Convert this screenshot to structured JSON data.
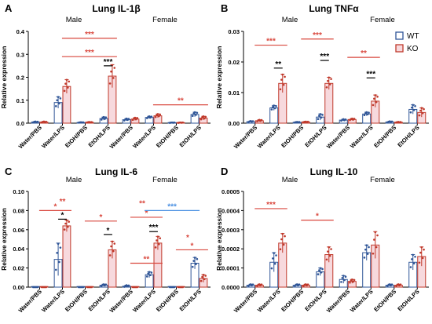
{
  "colors": {
    "wt": "#2f5597",
    "ko": "#c0392b",
    "ko_fill": "#f7d9dd",
    "ko_sig": "#d9473d",
    "blue_sig": "#4a90e2",
    "black": "#000000"
  },
  "legend": {
    "wt_label": "WT",
    "ko_label": "KO"
  },
  "chart_data": [
    {
      "type": "bar",
      "panel_letter": "A",
      "title": "Lung IL-1β",
      "ylabel": "Relative expression",
      "ylim": [
        0,
        0.4
      ],
      "yticks": [
        "0.0",
        "0.1",
        "0.2",
        "0.3",
        "0.4"
      ],
      "group_labels": [
        "Male",
        "Female"
      ],
      "categories": [
        "Water/PBS",
        "Water/LPS",
        "EtOH/PBS",
        "EtOH/LPS",
        "Water/PBS",
        "Water/LPS",
        "EtOH/PBS",
        "EtOH/LPS"
      ],
      "series": [
        {
          "name": "WT",
          "values": [
            0.005,
            0.09,
            0.003,
            0.02,
            0.015,
            0.025,
            0.002,
            0.038
          ],
          "errors": [
            0.002,
            0.025,
            0.001,
            0.007,
            0.005,
            0.005,
            0.001,
            0.01
          ]
        },
        {
          "name": "KO",
          "values": [
            0.005,
            0.16,
            0.004,
            0.205,
            0.018,
            0.032,
            0.002,
            0.022
          ],
          "errors": [
            0.002,
            0.03,
            0.001,
            0.05,
            0.006,
            0.008,
            0.001,
            0.008
          ]
        }
      ],
      "sig": [
        {
          "from": 1,
          "to": 3,
          "y": 0.29,
          "label": "***",
          "color": "ko",
          "left_bar": "ko",
          "right_bar": "ko"
        },
        {
          "from": 1,
          "to": 3,
          "y": 0.37,
          "label": "***",
          "color": "ko",
          "left_bar": "ko",
          "right_bar": "ko"
        },
        {
          "from": 3,
          "to": 3,
          "y": 0.25,
          "label": "***",
          "color": "black",
          "left_bar": "wt",
          "right_bar": "ko"
        },
        {
          "from": 5,
          "to": 7,
          "y": 0.08,
          "label": "**",
          "color": "ko",
          "left_bar": "ko",
          "right_bar": "ko"
        }
      ]
    },
    {
      "type": "bar",
      "panel_letter": "B",
      "title": "Lung TNFα",
      "ylabel": "Relative expression",
      "ylim": [
        0,
        0.03
      ],
      "yticks": [
        "0.00",
        "0.01",
        "0.02",
        "0.03"
      ],
      "group_labels": [
        "Male",
        "Female"
      ],
      "categories": [
        "Water/PBS",
        "Water/LPS",
        "EtOH/PBS",
        "EtOH/LPS",
        "Water/PBS",
        "Water/LPS",
        "EtOH/PBS",
        "EtOH/LPS"
      ],
      "series": [
        {
          "name": "WT",
          "values": [
            0.0005,
            0.005,
            0.0003,
            0.002,
            0.001,
            0.003,
            0.0004,
            0.0045
          ],
          "errors": [
            0.0002,
            0.0008,
            0.0001,
            0.001,
            0.0003,
            0.0006,
            0.0002,
            0.0015
          ]
        },
        {
          "name": "KO",
          "values": [
            0.0008,
            0.013,
            0.0004,
            0.013,
            0.0012,
            0.0072,
            0.0003,
            0.0035
          ],
          "errors": [
            0.0003,
            0.003,
            0.0001,
            0.002,
            0.0003,
            0.002,
            0.0001,
            0.0015
          ]
        }
      ],
      "sig": [
        {
          "from": 0,
          "to": 1,
          "y": 0.0255,
          "label": "***",
          "color": "ko",
          "left_bar": "ko",
          "right_bar": "ko"
        },
        {
          "from": 1,
          "to": 1,
          "y": 0.018,
          "label": "**",
          "color": "black",
          "left_bar": "wt",
          "right_bar": "ko"
        },
        {
          "from": 2,
          "to": 3,
          "y": 0.0275,
          "label": "***",
          "color": "ko",
          "left_bar": "ko",
          "right_bar": "ko"
        },
        {
          "from": 3,
          "to": 3,
          "y": 0.0205,
          "label": "***",
          "color": "black",
          "left_bar": "wt",
          "right_bar": "ko"
        },
        {
          "from": 4,
          "to": 5,
          "y": 0.0215,
          "label": "**",
          "color": "ko",
          "left_bar": "ko",
          "right_bar": "ko"
        },
        {
          "from": 5,
          "to": 5,
          "y": 0.0148,
          "label": "***",
          "color": "black",
          "left_bar": "wt",
          "right_bar": "ko"
        }
      ]
    },
    {
      "type": "bar",
      "panel_letter": "C",
      "title": "Lung IL-6",
      "ylabel": "Relative expression",
      "ylim": [
        0,
        0.1
      ],
      "yticks": [
        "0.00",
        "0.02",
        "0.04",
        "0.06",
        "0.08",
        "0.10"
      ],
      "group_labels": [
        "Male",
        "Female"
      ],
      "categories": [
        "Water/PBS",
        "Water/LPS",
        "EtOH/PBS",
        "EtOH/LPS",
        "Water/PBS",
        "Water/LPS",
        "EtOH/PBS",
        "EtOH/LPS"
      ],
      "series": [
        {
          "name": "WT",
          "values": [
            0.0,
            0.029,
            0.0,
            0.002,
            0.001,
            0.013,
            0.0,
            0.025
          ],
          "errors": [
            0.0,
            0.017,
            0.0,
            0.001,
            0.001,
            0.003,
            0.0,
            0.006
          ]
        },
        {
          "name": "KO",
          "values": [
            0.0,
            0.064,
            0.0,
            0.039,
            0.0,
            0.046,
            0.0,
            0.009
          ],
          "errors": [
            0.0,
            0.006,
            0.0,
            0.009,
            0.0,
            0.007,
            0.0,
            0.004
          ]
        }
      ],
      "sig": [
        {
          "from": 0,
          "to": 1,
          "y": 0.08,
          "label": "*",
          "color": "ko",
          "left_bar": "ko",
          "right_bar": "ko"
        },
        {
          "from": 1,
          "to": 1,
          "y": 0.071,
          "label": "*",
          "color": "black",
          "left_bar": "wt",
          "right_bar": "ko"
        },
        {
          "from": 2,
          "to": 3,
          "y": 0.069,
          "label": "*",
          "color": "ko",
          "left_bar": "ko",
          "right_bar": "ko"
        },
        {
          "from": 3,
          "to": 3,
          "y": 0.055,
          "label": "*",
          "color": "black",
          "left_bar": "wt",
          "right_bar": "ko"
        },
        {
          "from": 4,
          "to": 5,
          "y": 0.073,
          "label": "*",
          "color": "ko",
          "left_bar": "ko",
          "right_bar": "ko"
        },
        {
          "from": 4,
          "to": 5,
          "y": 0.025,
          "label": "**",
          "color": "ko",
          "left_bar": "ko",
          "right_bar": "ko"
        },
        {
          "from": 5,
          "to": 5,
          "y": 0.058,
          "label": "***",
          "color": "black",
          "left_bar": "wt",
          "right_bar": "ko"
        },
        {
          "from": 5,
          "to": 7,
          "y": 0.08,
          "label": "***",
          "color": "blue",
          "left_bar": "wt",
          "right_bar": "wt"
        },
        {
          "from": 6,
          "to": 7,
          "y": 0.039,
          "label": "*",
          "color": "ko",
          "left_bar": "ko",
          "right_bar": "ko"
        }
      ],
      "extra_marks": [
        {
          "at": 1,
          "y": 0.087,
          "label": "**",
          "color": "ko"
        },
        {
          "at": 4.5,
          "y": 0.085,
          "label": "**",
          "color": "ko"
        },
        {
          "at": 6.5,
          "y": 0.049,
          "label": "*",
          "color": "ko"
        }
      ]
    },
    {
      "type": "bar",
      "panel_letter": "D",
      "title": "Lung IL-10",
      "ylabel": "Relative expression",
      "ylim": [
        0,
        0.0005
      ],
      "yticks": [
        "0.0000",
        "0.0001",
        "0.0002",
        "0.0003",
        "0.0004",
        "0.0005"
      ],
      "group_labels": [
        "Male",
        "Female"
      ],
      "categories": [
        "Water/PBS",
        "Water/LPS",
        "EtOH/PBS",
        "EtOH/LPS",
        "Water/PBS",
        "Water/LPS",
        "EtOH/PBS",
        "EtOH/LPS"
      ],
      "series": [
        {
          "name": "WT",
          "values": [
            1e-05,
            0.00013,
            1e-05,
            8e-05,
            4e-05,
            0.00018,
            1e-05,
            0.00013
          ],
          "errors": [
            5e-06,
            5e-05,
            5e-06,
            2e-05,
            2e-05,
            4e-05,
            5e-06,
            4e-05
          ]
        },
        {
          "name": "KO",
          "values": [
            1e-05,
            0.00023,
            1e-05,
            0.00017,
            3e-05,
            0.00022,
            1e-05,
            0.00016
          ],
          "errors": [
            5e-06,
            5e-05,
            5e-06,
            4e-05,
            1e-05,
            7e-05,
            5e-06,
            5e-05
          ]
        }
      ],
      "sig": [
        {
          "from": 0,
          "to": 1,
          "y": 0.00041,
          "label": "***",
          "color": "ko",
          "left_bar": "ko",
          "right_bar": "ko"
        },
        {
          "from": 2,
          "to": 3,
          "y": 0.00035,
          "label": "*",
          "color": "ko",
          "left_bar": "ko",
          "right_bar": "ko"
        }
      ]
    }
  ]
}
